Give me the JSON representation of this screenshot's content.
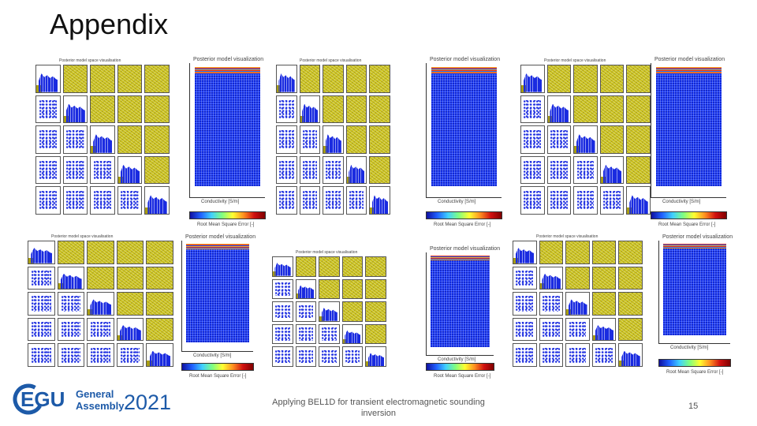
{
  "slide": {
    "title": "Appendix",
    "footer_text": "Applying BEL1D for transient electromagnetic sounding inversion",
    "page_number": "15"
  },
  "logo": {
    "abbr": "EGU",
    "line1": "General",
    "line2": "Assembly",
    "year": "2021",
    "color": "#1d5aa8"
  },
  "panels": [
    {
      "matrix_caption": "Posterior model space visualisation",
      "profile_caption": "Posterior model visualization",
      "colorbar_label": "Root Mean Square Error [-]",
      "xlabel": "Conductivity [S/m]"
    },
    {
      "matrix_caption": "Posterior model space visualisation",
      "profile_caption": "Posterior model visualization",
      "colorbar_label": "Root Mean Square Error [-]",
      "xlabel": "Conductivity [S/m]"
    },
    {
      "matrix_caption": "Posterior model space visualisation",
      "profile_caption": "Posterior model visualization",
      "colorbar_label": "Root Mean Square Error [-]",
      "xlabel": "Conductivity [S/m]"
    },
    {
      "matrix_caption": "Posterior model space visualisation",
      "profile_caption": "Posterior model visualization",
      "colorbar_label": "Root Mean Square Error [-]",
      "xlabel": "Conductivity [S/m]"
    },
    {
      "matrix_caption": "Posterior model space visualisation",
      "profile_caption": "Posterior model visualization",
      "colorbar_label": "Root Mean Square Error [-]",
      "xlabel": "Conductivity [S/m]"
    },
    {
      "matrix_caption": "Posterior model space visualisation",
      "profile_caption": "Posterior model visualization",
      "colorbar_label": "Root Mean Square Error [-]",
      "xlabel": "Conductivity [S/m]"
    }
  ]
}
